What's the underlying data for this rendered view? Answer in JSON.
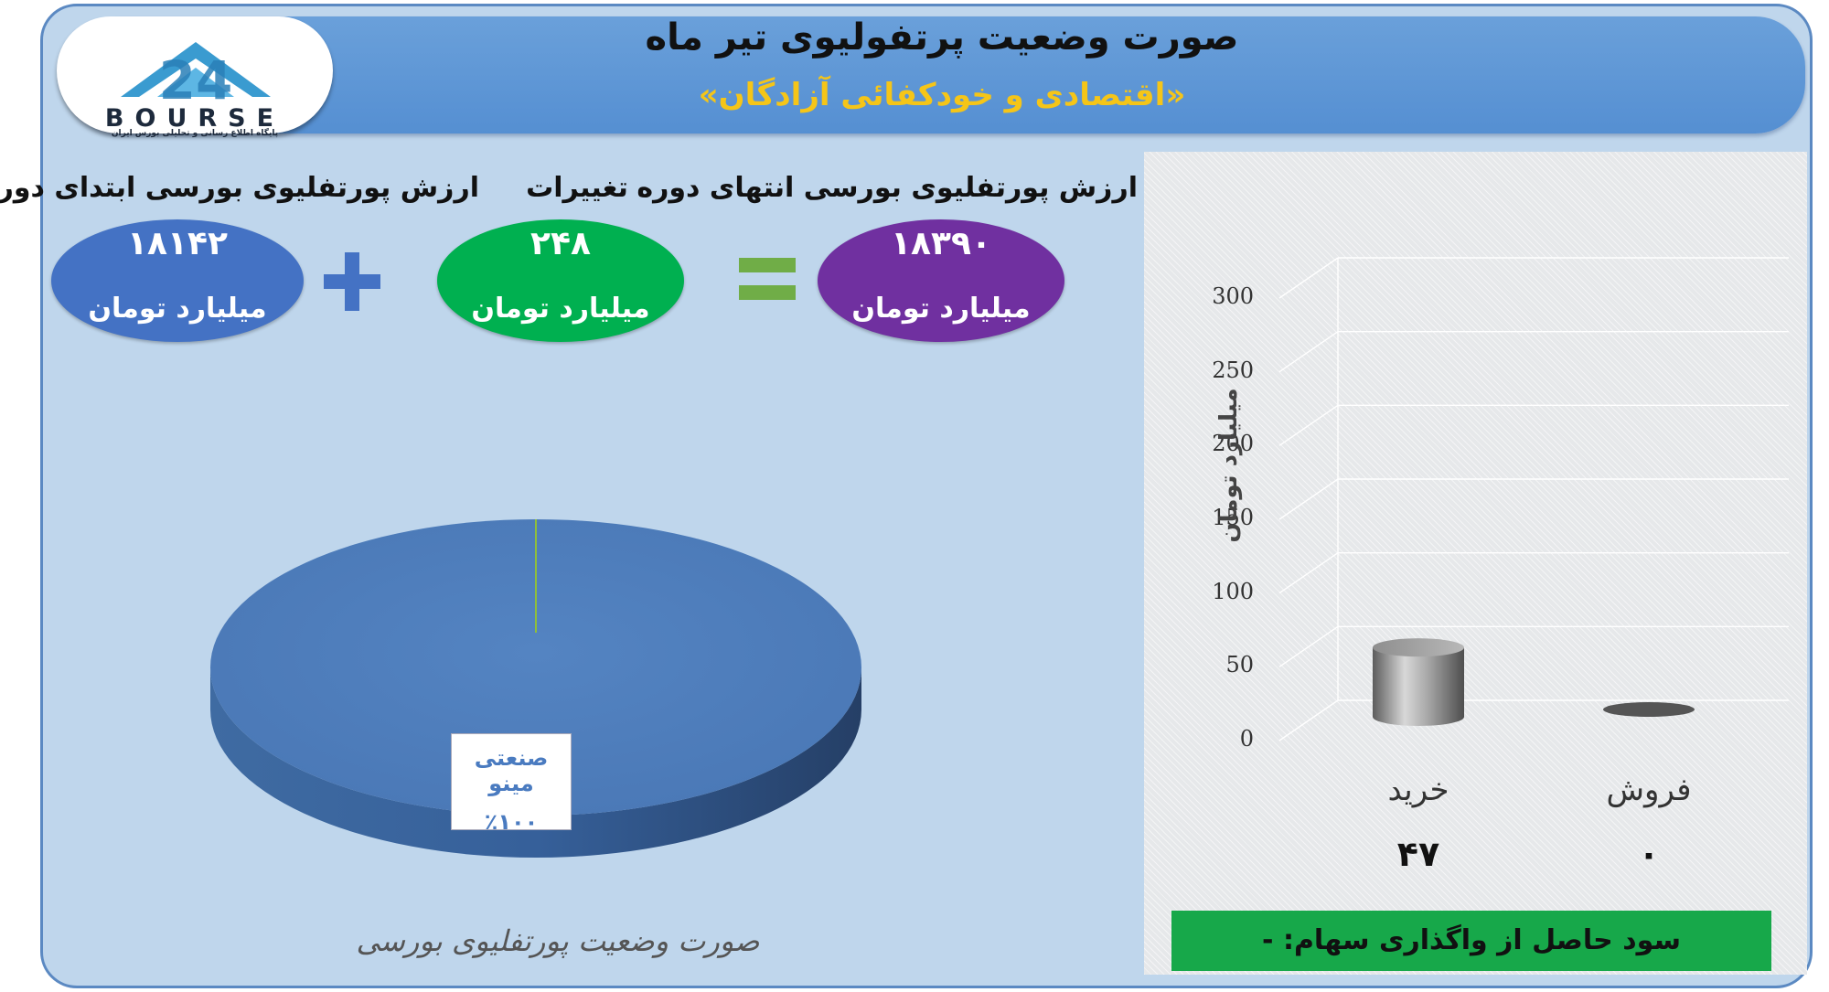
{
  "header": {
    "title": "صورت وضعیت پرتفولیوی تیر ماه",
    "subtitle": "«اقتصادی و خودکفائی آزادگان»"
  },
  "logo": {
    "mark": "24",
    "word": "BOURSE",
    "tagline": "پایگاه اطلاع رسانی و تحلیلی بورس ایران"
  },
  "metrics": {
    "start": {
      "label": "ارزش پورتفلیوی بورسی ابتدای دوره",
      "value": "۱۸۱۴۲",
      "unit": "میلیارد تومان",
      "color": "#4472c4"
    },
    "change": {
      "label": "تغییرات",
      "value": "۲۴۸",
      "unit": "میلیارد تومان",
      "color": "#00b050"
    },
    "end": {
      "label": "ارزش پورتفلیوی بورسی انتهای دوره",
      "value": "۱۸۳۹۰",
      "unit": "میلیارد تومان",
      "color": "#7030a0"
    },
    "plus_color": "#4472c4",
    "equals_color": "#70ad47"
  },
  "chart_data": [
    {
      "type": "pie",
      "title": "",
      "caption": "صورت وضعیت پورتفلیوی بورسی",
      "slices": [
        {
          "label": "صنعتی مینو",
          "value": 100,
          "display": "٪۱۰۰"
        }
      ],
      "colors": [
        "#4f81bd"
      ]
    },
    {
      "type": "bar",
      "title": "",
      "categories": [
        "خرید",
        "فروش"
      ],
      "values": [
        47,
        0
      ],
      "value_labels": [
        "۴۷",
        "۰"
      ],
      "xlabel": "",
      "ylabel": "میلیارد تومان",
      "ylim": [
        0,
        300
      ],
      "yticks": [
        0,
        50,
        100,
        150,
        200,
        250,
        300
      ],
      "grid": true
    }
  ],
  "profit": {
    "label": "سود حاصل از واگذاری سهام: -"
  }
}
